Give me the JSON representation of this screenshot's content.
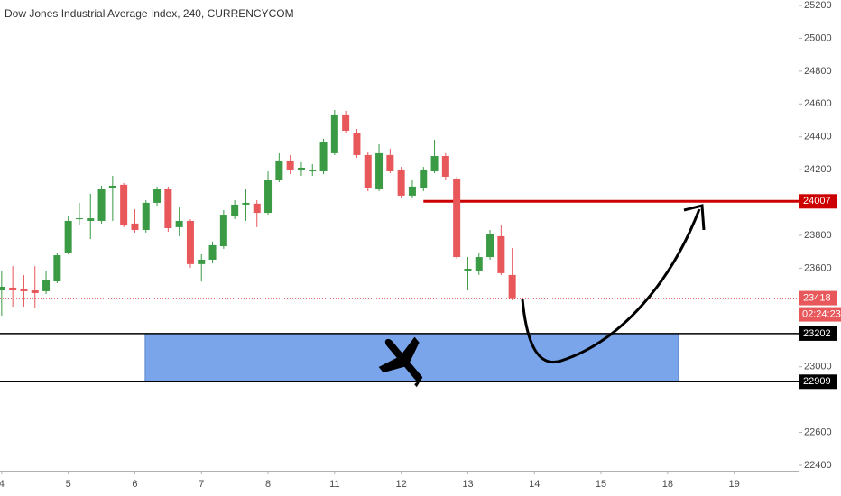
{
  "chart_data": {
    "type": "candlestick",
    "title": "Dow Jones Industrial Average Index, 240, CURRENCYCOM",
    "up_color": "#3a9b44",
    "down_color": "#e8575a",
    "open": [
      23465,
      23482,
      23476,
      23465,
      23460,
      23520,
      23696,
      23899,
      23888,
      23888,
      24091,
      24108,
      23872,
      23833,
      23998,
      24080,
      23850,
      23888,
      23625,
      23652,
      23734,
      23915,
      23987,
      23993,
      23937,
      24135,
      24256,
      24201,
      24190,
      24190,
      24300,
      24536,
      24426,
      24289,
      24080,
      24289,
      24201,
      24042,
      24091,
      24190,
      24283,
      24146,
      23586,
      23586,
      23668,
      23795,
      23559
    ],
    "high": [
      23586,
      23613,
      23558,
      23613,
      23586,
      23696,
      23915,
      23998,
      24053,
      24102,
      24162,
      24119,
      23959,
      24014,
      24097,
      24097,
      23970,
      23899,
      23685,
      23762,
      23954,
      24014,
      24080,
      24014,
      24190,
      24300,
      24289,
      24245,
      24234,
      24388,
      24563,
      24558,
      24448,
      24311,
      24355,
      24327,
      24217,
      24135,
      24217,
      24382,
      24300,
      24157,
      23668,
      23696,
      23833,
      23860,
      23723
    ],
    "low": [
      23311,
      23366,
      23366,
      23355,
      23443,
      23509,
      23685,
      23860,
      23778,
      23872,
      23888,
      23850,
      23817,
      23817,
      23981,
      23822,
      23795,
      23603,
      23520,
      23630,
      23718,
      23899,
      23888,
      23850,
      23926,
      24124,
      24173,
      24162,
      24162,
      24173,
      24289,
      24420,
      24272,
      24069,
      24069,
      24179,
      24025,
      24025,
      24069,
      24179,
      24135,
      23657,
      23465,
      23559,
      23652,
      23559,
      23405
    ],
    "close": [
      23487,
      23465,
      23460,
      23449,
      23531,
      23679,
      23888,
      23904,
      23904,
      24080,
      24102,
      23860,
      23833,
      23998,
      24080,
      23844,
      23888,
      23625,
      23652,
      23740,
      23926,
      23987,
      23998,
      23937,
      24135,
      24256,
      24201,
      24212,
      24195,
      24371,
      24536,
      24437,
      24289,
      24086,
      24300,
      24190,
      24042,
      24097,
      24201,
      24283,
      24157,
      23668,
      23597,
      23668,
      23806,
      23570,
      23418
    ],
    "xlim": [
      -0.15,
      71.8
    ],
    "xticks": [
      {
        "value": 0,
        "label": "4"
      },
      {
        "value": 6,
        "label": "5"
      },
      {
        "value": 12,
        "label": "6"
      },
      {
        "value": 18,
        "label": "7"
      },
      {
        "value": 24,
        "label": "8"
      },
      {
        "value": 30,
        "label": "11"
      },
      {
        "value": 36,
        "label": "12"
      },
      {
        "value": 42,
        "label": "13"
      },
      {
        "value": 48,
        "label": "14"
      },
      {
        "value": 54,
        "label": "15"
      },
      {
        "value": 60,
        "label": "18"
      },
      {
        "value": 66,
        "label": "19"
      }
    ],
    "ylim": [
      22367,
      25233
    ],
    "yticks": [
      22400,
      22600,
      23000,
      23600,
      23800,
      24200,
      24400,
      24600,
      24800,
      25000,
      25200
    ],
    "levels": [
      {
        "value": 24007,
        "color": "#cc0000",
        "x_start": 38
      },
      {
        "value": 23202,
        "color": "#000000"
      },
      {
        "value": 22909,
        "color": "#000000"
      }
    ],
    "last_price": {
      "value": 23418,
      "countdown": "02:24:23",
      "color": "#e8575a"
    },
    "zone": {
      "ymin": 22909,
      "ymax": 23202,
      "xmin": 12.93,
      "xmax": 60.98,
      "color": "#7aa5ea"
    }
  }
}
